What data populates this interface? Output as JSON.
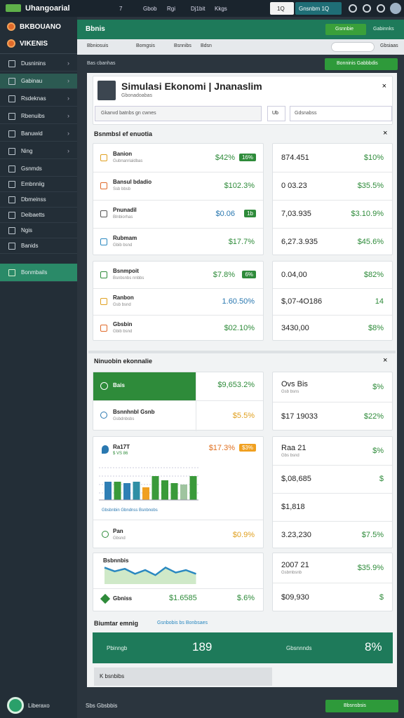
{
  "topbar": {
    "brand": "Uhangoarial",
    "nav": [
      "7",
      "Gbob",
      "Rgi",
      "Dj1bit",
      "Kkgs"
    ],
    "search": "1Q",
    "account": "Gnsnbm 1Q"
  },
  "sidebar": {
    "brand": "BKBOUANO",
    "sub": "VIKENIS",
    "items": [
      "Dusninins",
      "Gabinau",
      "Rsdeknas",
      "Rbenuibs",
      "Banuwid",
      "Ning",
      "Gsnmds",
      "Embnniig",
      "Dbmeinss",
      "Deibaetts",
      "Ngis",
      "Banids",
      "Bonmbails"
    ],
    "footer": "Liberaxo"
  },
  "header": {
    "title": "Bbnis",
    "button": "Gsnnbie",
    "link": "Gabinnks"
  },
  "filters": {
    "items": [
      "Bbniosuis",
      "Bomgsis",
      "Bsnnibs",
      "Bdsn"
    ],
    "link": "Gbsiaas"
  },
  "toolbar": {
    "label": "Bas cbanhas",
    "button": "Bonninis Gabbbdis"
  },
  "profile": {
    "title": "Simulasi Ekonomi | Jnanaslim",
    "subtitle": "Gbonadoabas",
    "search": "Gkanvd batnbs gn cwnes",
    "unit": "Ub",
    "select": "Gdsnabss"
  },
  "section1": {
    "title": "Bsnmbsl ef enuotia",
    "group1": {
      "left": [
        {
          "name": "Banion",
          "sub": "Gubnanrialdbas",
          "value": "$42%",
          "badge": "16%",
          "color": "#2e8b3a"
        },
        {
          "name": "Bansul bdadio",
          "sub": "Ssb bbsb",
          "value": "$102.3%",
          "color": "#2e8b3a"
        },
        {
          "name": "Pnunadil",
          "sub": "Blnbiorhas",
          "value": "$0.06",
          "badge": "1b",
          "color": "#2a78b0"
        },
        {
          "name": "Rubmam",
          "sub": "Gbib bsnd",
          "value": "$17.7%",
          "color": "#2e8b3a"
        }
      ],
      "right": [
        {
          "value": "874.451",
          "pct": "$10%"
        },
        {
          "value": "0 03.23",
          "pct": "$35.5%"
        },
        {
          "value": "7,03.935",
          "pct": "$3.10.9%"
        },
        {
          "value": "6,27.3.935",
          "pct": "$45.6%"
        }
      ]
    },
    "group2": {
      "left": [
        {
          "name": "Bsnmpoit",
          "sub": "Bsnbsnbs nnbbs",
          "value": "$7.8%",
          "badge": "6%",
          "color": "#2e8b3a"
        },
        {
          "name": "Ranbon",
          "sub": "Gsb bsnd",
          "value": "1.60.50%",
          "color": "#2a78b0"
        },
        {
          "name": "Gbsbin",
          "sub": "Gbib bsnd",
          "value": "$02.10%",
          "color": "#2e8b3a"
        }
      ],
      "right": [
        {
          "value": "0.04,00",
          "pct": "$82%"
        },
        {
          "value": "$,07-4O186",
          "pct": "14"
        },
        {
          "value": "3430,00",
          "pct": "$8%"
        }
      ]
    }
  },
  "section2": {
    "title": "Ninuobin ekonnalie",
    "card1": {
      "left": [
        {
          "name": "Bais",
          "value": "$9,653.2%",
          "color": "#2e8b3a"
        },
        {
          "name": "Bsnnhnbl Gsnb",
          "sub": "Gsbdnbsbs",
          "value": "$5.5%",
          "color": "#e0a020"
        }
      ],
      "right": [
        {
          "value": "Ovs Bis",
          "sub": "Gsb bsns",
          "pct": "$%"
        },
        {
          "value": "$17 19033",
          "pct": "$22%"
        }
      ]
    },
    "chart_card": {
      "name": "Ra17T",
      "sub": "$ VS 86",
      "value": "$17.3%",
      "badge": "$3%",
      "legend": "Gbsbnbin Gbndnss Bsnbnobs",
      "row": {
        "name": "Pan",
        "sub": "Gbsnd",
        "value": "$0.9%"
      },
      "right": [
        {
          "value": "Raa 21",
          "sub": "Gbs bsnd",
          "pct": "$%"
        },
        {
          "value": "$,08,685",
          "pct": "$"
        },
        {
          "value": "$1,818"
        },
        {
          "value": "3.23,230",
          "pct": "$7.5%"
        }
      ]
    },
    "bar_chart": {
      "values": [
        26,
        26,
        24,
        26,
        18,
        34,
        28,
        24,
        22,
        34
      ],
      "colors": [
        "#2f7fb5",
        "#3a9a3a",
        "#2f7fb5",
        "#2f8fa5",
        "#f0a020",
        "#3a9a3a",
        "#3a9a3a",
        "#3a9a3a",
        "#9fc49f",
        "#3a9a3a"
      ]
    },
    "line_card": {
      "title": "Bsbnnbis",
      "line": [
        12,
        9,
        11,
        7,
        10,
        6,
        12,
        8,
        10,
        7
      ],
      "row": {
        "name": "Gbniss",
        "value": "$1.6585",
        "pct": "$.6%"
      },
      "right": [
        {
          "value": "2007 21",
          "sub": "Gsbmbsnb",
          "pct": "$35.9%"
        },
        {
          "value": "$09,930",
          "pct": "$"
        }
      ]
    }
  },
  "summary": {
    "title": "Biumtar emnig",
    "link": "Gsnbobis bs Bonbsaes",
    "label": "Pbinngb",
    "value": "189",
    "label2": "Gbsnnnds",
    "pct": "8%",
    "button": "K bsnbibs"
  },
  "footer": {
    "text": "Sbs Gbsbbis",
    "button": "Bbsnsbsis"
  }
}
